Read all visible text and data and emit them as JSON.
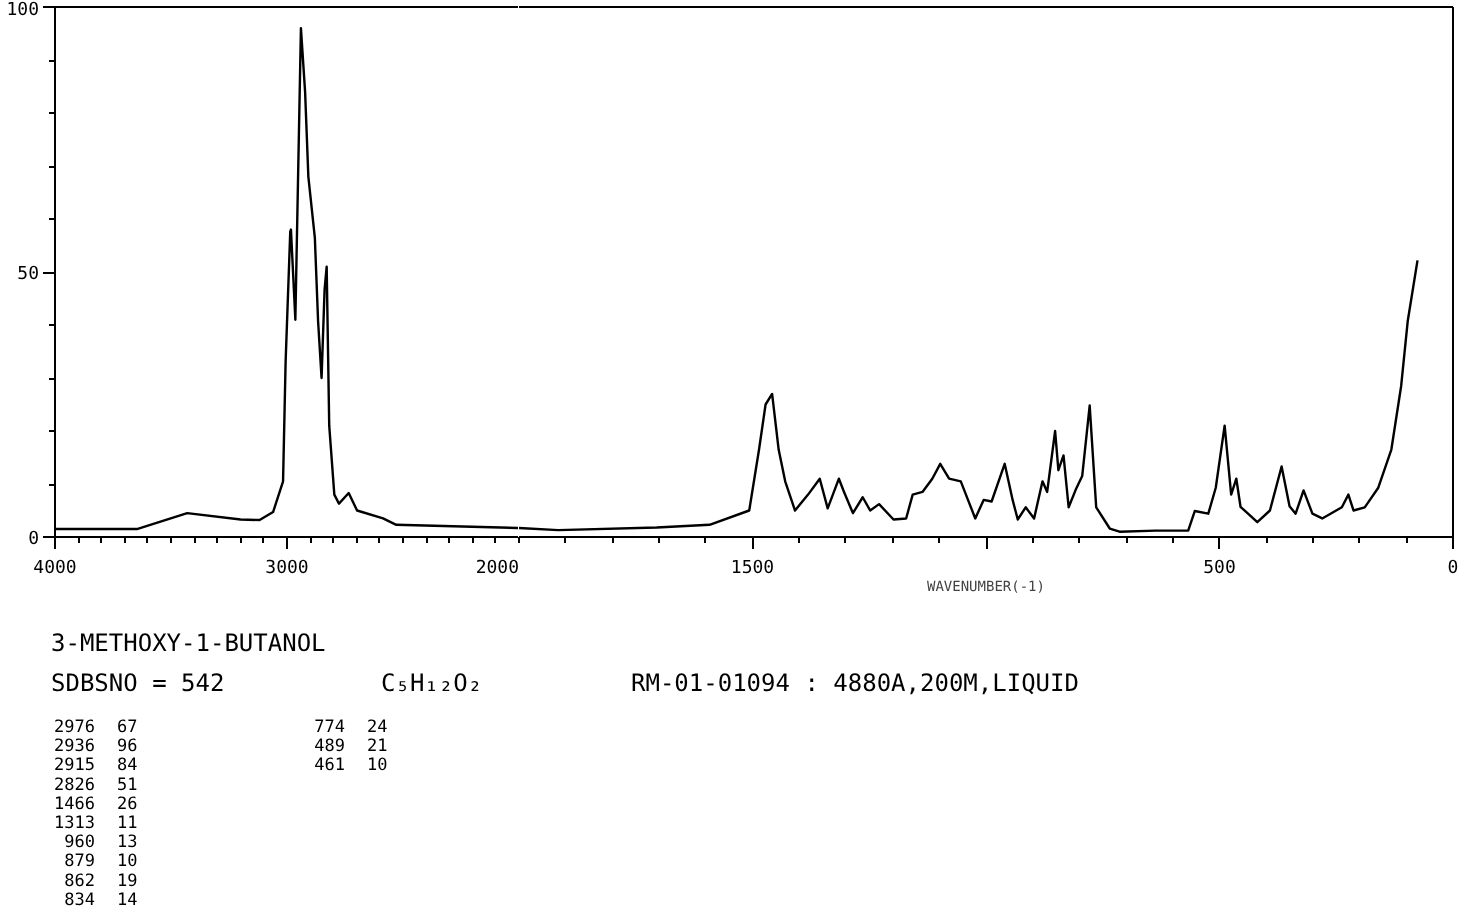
{
  "chart_data": [
    {
      "type": "line",
      "xlim": [
        4000,
        2000
      ],
      "xticks": [
        4000,
        3000,
        2000
      ],
      "ylim": [
        0,
        100
      ],
      "yticks": [
        0,
        50,
        100
      ],
      "line_style": "solid",
      "series": [
        {
          "color": "#000000",
          "x": [
            4000,
            3647,
            3430,
            3200,
            3118,
            3060,
            3017,
            3006,
            2986,
            2983,
            2964,
            2940,
            2922,
            2908,
            2880,
            2866,
            2851,
            2838,
            2829,
            2818,
            2796,
            2776,
            2734,
            2698,
            2586,
            2529,
            2000
          ],
          "values": [
            1.5,
            1.5,
            4.5,
            3.3,
            3.2,
            4.7,
            10.5,
            33,
            57.6,
            58,
            41,
            96,
            84,
            68,
            56.5,
            40.7,
            30,
            46.7,
            51,
            21,
            8,
            6.3,
            8.3,
            5,
            3.5,
            2.3,
            1.7
          ]
        }
      ],
      "annotations": [
        "3-METHOXY-1-BUTANOL",
        "SDBSNO = 542",
        "C₅H₁₂O₂",
        "RM-01-01094 : 4880A,200M,LIQUID",
        "2976",
        "67",
        "2936",
        "96",
        "2915",
        "84",
        "2826",
        "51",
        "1466",
        "26",
        "1313",
        "11",
        "960",
        "13",
        "879",
        "10",
        "862",
        "19",
        "834",
        "14",
        "774",
        "24",
        "489",
        "21",
        "461",
        "10"
      ]
    },
    {
      "type": "line",
      "xlabel": "WAVENUMBER(-1)",
      "xlim": [
        2000,
        0
      ],
      "xticks": [
        1500,
        {
          "value": 1000,
          "label": null
        },
        500,
        0
      ],
      "ylim": [
        0,
        100
      ],
      "tick_labels": "x",
      "line_style": "solid",
      "series": [
        {
          "color": "#000000",
          "x": [
            2000,
            1916,
            1705,
            1592,
            1507,
            1486,
            1472,
            1458,
            1444,
            1430,
            1409,
            1381,
            1356,
            1339,
            1315,
            1304,
            1285,
            1264,
            1248,
            1229,
            1198,
            1171,
            1157,
            1136,
            1115,
            1098,
            1079,
            1054,
            1023,
            1005,
            988,
            960,
            943,
            932,
            915,
            897,
            879,
            869,
            852,
            845,
            834,
            823,
            808,
            794,
            778,
            764,
            735,
            714,
            637,
            567,
            553,
            524,
            508,
            489,
            475,
            464,
            455,
            419,
            392,
            367,
            350,
            337,
            320,
            301,
            280,
            238,
            224,
            213,
            189,
            160,
            132,
            111,
            97,
            76
          ],
          "values": [
            1.7,
            1.3,
            1.8,
            2.3,
            5,
            16.5,
            25,
            27,
            16.5,
            10.5,
            5,
            8,
            11,
            5.4,
            11,
            8.5,
            4.5,
            7.5,
            5,
            6.2,
            3.3,
            3.5,
            8,
            8.5,
            11,
            13.8,
            11,
            10.5,
            3.5,
            7,
            6.7,
            13.8,
            7,
            3.3,
            5.6,
            3.5,
            10.5,
            8.5,
            20,
            12.6,
            15.4,
            5.6,
            8.9,
            11.5,
            24.8,
            5.6,
            1.6,
            1.0,
            1.2,
            1.2,
            4.9,
            4.4,
            9.3,
            21,
            8,
            11,
            5.7,
            2.8,
            5,
            13.3,
            5.8,
            4.4,
            8.8,
            4.4,
            3.5,
            5.6,
            8,
            5,
            5.6,
            9.3,
            16.5,
            28.5,
            40.7,
            52.2
          ]
        }
      ]
    }
  ]
}
